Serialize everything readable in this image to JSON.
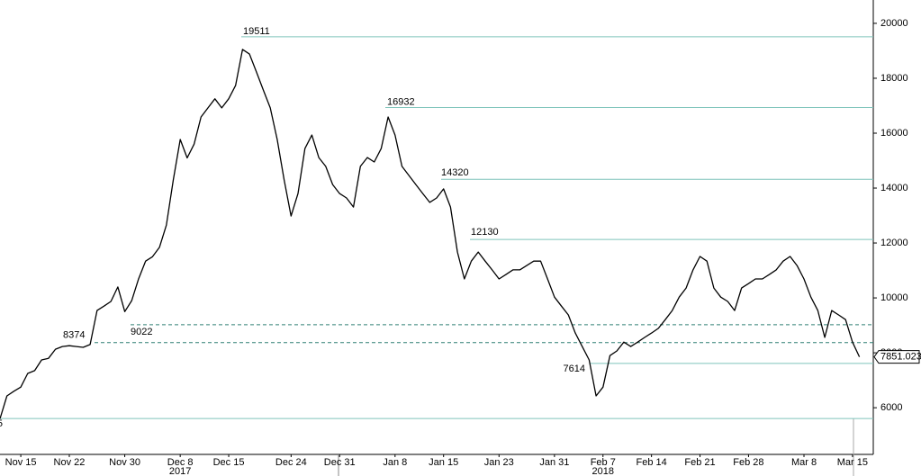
{
  "chart_data": {
    "type": "line",
    "x": [
      "2017-11-12",
      "2017-11-13",
      "2017-11-14",
      "2017-11-15",
      "2017-11-16",
      "2017-11-17",
      "2017-11-18",
      "2017-11-19",
      "2017-11-20",
      "2017-11-21",
      "2017-11-22",
      "2017-11-23",
      "2017-11-24",
      "2017-11-25",
      "2017-11-26",
      "2017-11-27",
      "2017-11-28",
      "2017-11-29",
      "2017-11-30",
      "2017-12-01",
      "2017-12-02",
      "2017-12-03",
      "2017-12-04",
      "2017-12-05",
      "2017-12-06",
      "2017-12-07",
      "2017-12-08",
      "2017-12-09",
      "2017-12-10",
      "2017-12-11",
      "2017-12-12",
      "2017-12-13",
      "2017-12-14",
      "2017-12-15",
      "2017-12-16",
      "2017-12-17",
      "2017-12-18",
      "2017-12-19",
      "2017-12-20",
      "2017-12-21",
      "2017-12-22",
      "2017-12-23",
      "2017-12-24",
      "2017-12-25",
      "2017-12-26",
      "2017-12-27",
      "2017-12-28",
      "2017-12-29",
      "2017-12-30",
      "2017-12-31",
      "2018-01-01",
      "2018-01-02",
      "2018-01-03",
      "2018-01-04",
      "2018-01-05",
      "2018-01-06",
      "2018-01-07",
      "2018-01-08",
      "2018-01-09",
      "2018-01-10",
      "2018-01-11",
      "2018-01-12",
      "2018-01-13",
      "2018-01-14",
      "2018-01-15",
      "2018-01-16",
      "2018-01-17",
      "2018-01-18",
      "2018-01-19",
      "2018-01-20",
      "2018-01-21",
      "2018-01-22",
      "2018-01-23",
      "2018-01-24",
      "2018-01-25",
      "2018-01-26",
      "2018-01-27",
      "2018-01-28",
      "2018-01-29",
      "2018-01-30",
      "2018-01-31",
      "2018-02-01",
      "2018-02-02",
      "2018-02-03",
      "2018-02-04",
      "2018-02-05",
      "2018-02-06",
      "2018-02-07",
      "2018-02-08",
      "2018-02-09",
      "2018-02-10",
      "2018-02-11",
      "2018-02-12",
      "2018-02-13",
      "2018-02-14",
      "2018-02-15",
      "2018-02-16",
      "2018-02-17",
      "2018-02-18",
      "2018-02-19",
      "2018-02-20",
      "2018-02-21",
      "2018-02-22",
      "2018-02-23",
      "2018-02-24",
      "2018-02-25",
      "2018-02-26",
      "2018-02-27",
      "2018-02-28",
      "2018-03-01",
      "2018-03-02",
      "2018-03-03",
      "2018-03-04",
      "2018-03-05",
      "2018-03-06",
      "2018-03-07",
      "2018-03-08",
      "2018-03-09",
      "2018-03-10",
      "2018-03-11",
      "2018-03-12",
      "2018-03-13",
      "2018-03-14",
      "2018-03-15",
      "2018-03-16"
    ],
    "series": [
      {
        "color": "#000000",
        "values": [
          5600,
          6430,
          6600,
          6750,
          7250,
          7350,
          7740,
          7800,
          8130,
          8230,
          8260,
          8230,
          8200,
          8300,
          9540,
          9700,
          9870,
          10400,
          9500,
          9900,
          10700,
          11340,
          11500,
          11840,
          12650,
          14300,
          15770,
          15100,
          15600,
          16590,
          16920,
          17250,
          16920,
          17250,
          17740,
          19050,
          18880,
          18230,
          17570,
          16920,
          15770,
          14300,
          12980,
          13800,
          15440,
          15930,
          15110,
          14790,
          14130,
          13800,
          13640,
          13310,
          14790,
          15110,
          14950,
          15440,
          16590,
          15930,
          14790,
          14460,
          14130,
          13800,
          13480,
          13640,
          13970,
          13310,
          11670,
          10690,
          11340,
          11670,
          11340,
          11020,
          10690,
          10850,
          11020,
          11020,
          11180,
          11340,
          11340,
          10690,
          10030,
          9700,
          9380,
          8720,
          8230,
          7740,
          6430,
          6750,
          7900,
          8070,
          8390,
          8230,
          8390,
          8560,
          8720,
          8890,
          9210,
          9540,
          10030,
          10360,
          11020,
          11510,
          11340,
          10360,
          10030,
          9870,
          9540,
          10360,
          10520,
          10690,
          10690,
          10850,
          11020,
          11340,
          11510,
          11180,
          10690,
          10030,
          9540,
          8560,
          9540,
          9380,
          9210,
          8390,
          7851.0234
        ]
      }
    ],
    "levels": [
      {
        "value": 19511,
        "style": "solid"
      },
      {
        "value": 16932,
        "style": "solid"
      },
      {
        "value": 14320,
        "style": "solid"
      },
      {
        "value": 12130,
        "style": "solid"
      },
      {
        "value": 7614,
        "style": "solid"
      },
      {
        "value": 9022,
        "style": "dashed"
      },
      {
        "value": 8374,
        "style": "dashed"
      },
      {
        "value": 5605,
        "style": "solid"
      }
    ],
    "level_color": "#7fc4bb",
    "xlim": [
      "2017-11-12",
      "2018-03-18"
    ],
    "ylim": [
      4300,
      20850
    ],
    "yticks": [
      6000,
      8000,
      10000,
      12000,
      14000,
      16000,
      18000,
      20000
    ],
    "xticks": [
      {
        "value": "2017-11-15",
        "label": "Nov 15"
      },
      {
        "value": "2017-11-22",
        "label": "Nov 22"
      },
      {
        "value": "2017-11-30",
        "label": "Nov 30"
      },
      {
        "value": "2017-12-08",
        "label": "Dec 8"
      },
      {
        "value": "2017-12-15",
        "label": "Dec 15"
      },
      {
        "value": "2017-12-24",
        "label": "Dec 24"
      },
      {
        "value": "2017-12-31",
        "label": "Dec 31"
      },
      {
        "value": "2018-01-08",
        "label": "Jan 8"
      },
      {
        "value": "2018-01-15",
        "label": "Jan 15"
      },
      {
        "value": "2018-01-23",
        "label": "Jan 23"
      },
      {
        "value": "2018-01-31",
        "label": "Jan 31"
      },
      {
        "value": "2018-02-07",
        "label": "Feb 7"
      },
      {
        "value": "2018-02-14",
        "label": "Feb 14"
      },
      {
        "value": "2018-02-21",
        "label": "Feb 21"
      },
      {
        "value": "2018-02-28",
        "label": "Feb 28"
      },
      {
        "value": "2018-03-08",
        "label": "Mar 8"
      },
      {
        "value": "2018-03-15",
        "label": "Mar 15"
      }
    ],
    "year_labels": [
      {
        "value": "2017-12-08",
        "label": "2017"
      },
      {
        "value": "2018-02-07",
        "label": "2018"
      }
    ]
  }
}
